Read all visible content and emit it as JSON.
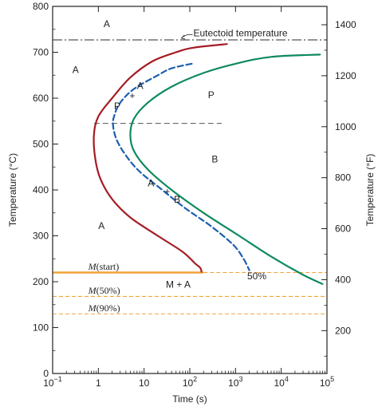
{
  "chart_data": {
    "type": "line",
    "title": "",
    "xlabel": "Time (s)",
    "ylabel": "Temperature (°C)",
    "y2label": "Temperature (°F)",
    "x_scale": "log",
    "xlim": [
      0.1,
      100000
    ],
    "ylim": [
      0,
      800
    ],
    "y2lim": [
      32,
      1472
    ],
    "grid": false,
    "x_ticks": [
      {
        "value": 0.1,
        "base": "10",
        "exp": "−1"
      },
      {
        "value": 1,
        "base": "1",
        "exp": ""
      },
      {
        "value": 10,
        "base": "10",
        "exp": ""
      },
      {
        "value": 100,
        "base": "10",
        "exp": "2"
      },
      {
        "value": 1000,
        "base": "10",
        "exp": "3"
      },
      {
        "value": 10000,
        "base": "10",
        "exp": "4"
      },
      {
        "value": 100000,
        "base": "10",
        "exp": "5"
      }
    ],
    "y_ticks": [
      0,
      100,
      200,
      300,
      400,
      500,
      600,
      700,
      800
    ],
    "y2_ticks": [
      200,
      400,
      600,
      800,
      1000,
      1200,
      1400
    ],
    "colors": {
      "start": "#a51c24",
      "mid": "#1a5fb0",
      "finish": "#0e8a5f",
      "martensite": "#f2a33a",
      "eutectoid": "#555555",
      "dashed_nose": "#555555"
    },
    "series": [
      {
        "role": "start",
        "x": [
          650,
          120,
          50,
          15,
          5,
          2,
          1,
          0.8,
          0.85,
          1.1,
          2,
          5,
          20,
          70,
          130,
          170,
          180
        ],
        "y": [
          718,
          710,
          700,
          680,
          645,
          600,
          560,
          520,
          470,
          425,
          380,
          340,
          300,
          265,
          240,
          230,
          222
        ]
      },
      {
        "role": "mid",
        "x": [
          110,
          40,
          20,
          6,
          3,
          2.2,
          2.1,
          2.5,
          4,
          8,
          25,
          80,
          300,
          900,
          1500,
          2000
        ],
        "y": [
          675,
          665,
          650,
          620,
          590,
          560,
          540,
          510,
          475,
          440,
          400,
          360,
          320,
          280,
          250,
          225
        ]
      },
      {
        "role": "finish",
        "x": [
          70000,
          6000,
          1000,
          200,
          40,
          12,
          6,
          5,
          6,
          12,
          40,
          200,
          1200,
          6000,
          30000,
          80000
        ],
        "y": [
          695,
          690,
          675,
          655,
          625,
          590,
          555,
          520,
          485,
          445,
          400,
          350,
          300,
          255,
          215,
          195
        ]
      }
    ],
    "reference_lines": [
      {
        "role": "eutectoid",
        "y": 727,
        "x_from": 0.1,
        "x_to": 100000
      },
      {
        "role": "dashed_nose",
        "y": 545,
        "x_from": 0.8,
        "x_to": 500
      },
      {
        "role": "m_start",
        "y": 220,
        "x_from": 0.1,
        "x_to": 200,
        "style": "solid"
      },
      {
        "role": "m_start_ext",
        "y": 220,
        "x_from": 200,
        "x_to": 100000,
        "style": "dashed"
      },
      {
        "role": "m50",
        "y": 168,
        "x_from": 0.1,
        "x_to": 100000,
        "style": "dashed"
      },
      {
        "role": "m90",
        "y": 130,
        "x_from": 0.1,
        "x_to": 100000,
        "style": "dashed"
      }
    ],
    "annotations": {
      "eutectoid_label": "Eutectoid temperature",
      "percent_label": "50%",
      "m_start": {
        "symbol": "M",
        "suffix": "(start)"
      },
      "m50": {
        "symbol": "M",
        "suffix": "(50%)"
      },
      "m90": {
        "symbol": "M",
        "suffix": "(90%)"
      },
      "region_a_top": "A",
      "region_a_left": "A",
      "region_a_lower": "A",
      "pa_upper_a": "A",
      "pa_upper_plus": "+",
      "pa_upper_p": "P",
      "region_p": "P",
      "region_b": "B",
      "ab_a": "A",
      "ab_plus": "+",
      "ab_b": "B",
      "m_plus_a": "M + A"
    }
  }
}
